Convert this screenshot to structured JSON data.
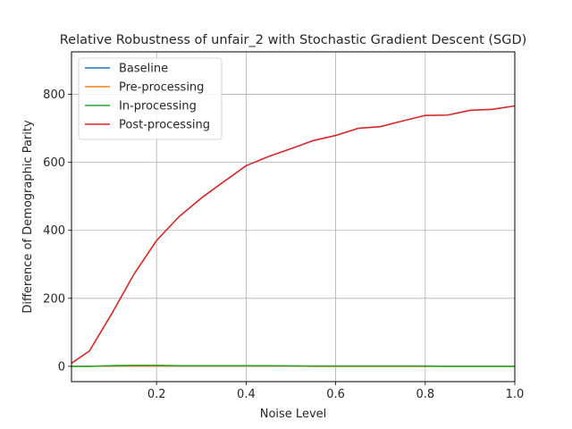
{
  "chart_data": {
    "type": "line",
    "title": "Relative Robustness of unfair_2 with Stochastic Gradient Descent (SGD)",
    "xlabel": "Noise Level",
    "ylabel": "Difference of Demographic Parity",
    "xlim": [
      0.01,
      1.0
    ],
    "ylim": [
      -45,
      925
    ],
    "xticks": [
      0.2,
      0.4,
      0.6,
      0.8,
      1.0
    ],
    "xtick_labels": [
      "0.2",
      "0.4",
      "0.6",
      "0.8",
      "1.0"
    ],
    "yticks": [
      0,
      200,
      400,
      600,
      800
    ],
    "ytick_labels": [
      "0",
      "200",
      "400",
      "600",
      "800"
    ],
    "grid": true,
    "legend_position": "top-left",
    "x": [
      0.01,
      0.05,
      0.1,
      0.15,
      0.2,
      0.25,
      0.3,
      0.35,
      0.4,
      0.45,
      0.5,
      0.55,
      0.6,
      0.65,
      0.7,
      0.75,
      0.8,
      0.85,
      0.9,
      0.95,
      1.0
    ],
    "series": [
      {
        "name": "Baseline",
        "color": "#1f77b4",
        "values": [
          0,
          0,
          1,
          1,
          1,
          1,
          1,
          1,
          1,
          1,
          1,
          0,
          0,
          0,
          0,
          0,
          0,
          0,
          0,
          0,
          0
        ]
      },
      {
        "name": "Pre-processing",
        "color": "#ff7f0e",
        "values": [
          0,
          0,
          1,
          1,
          1,
          1,
          1,
          1,
          1,
          1,
          1,
          0,
          0,
          0,
          0,
          0,
          0,
          0,
          0,
          0,
          0
        ]
      },
      {
        "name": "In-processing",
        "color": "#2ca02c",
        "values": [
          0,
          0,
          2,
          3,
          3,
          2,
          2,
          2,
          2,
          2,
          1,
          1,
          1,
          1,
          1,
          1,
          1,
          0,
          0,
          0,
          0
        ]
      },
      {
        "name": "Post-processing",
        "color": "#d62728",
        "values": [
          9,
          45,
          155,
          272,
          370,
          440,
          495,
          543,
          590,
          617,
          640,
          664,
          679,
          700,
          705,
          722,
          738,
          739,
          753,
          756,
          766
        ]
      }
    ]
  }
}
